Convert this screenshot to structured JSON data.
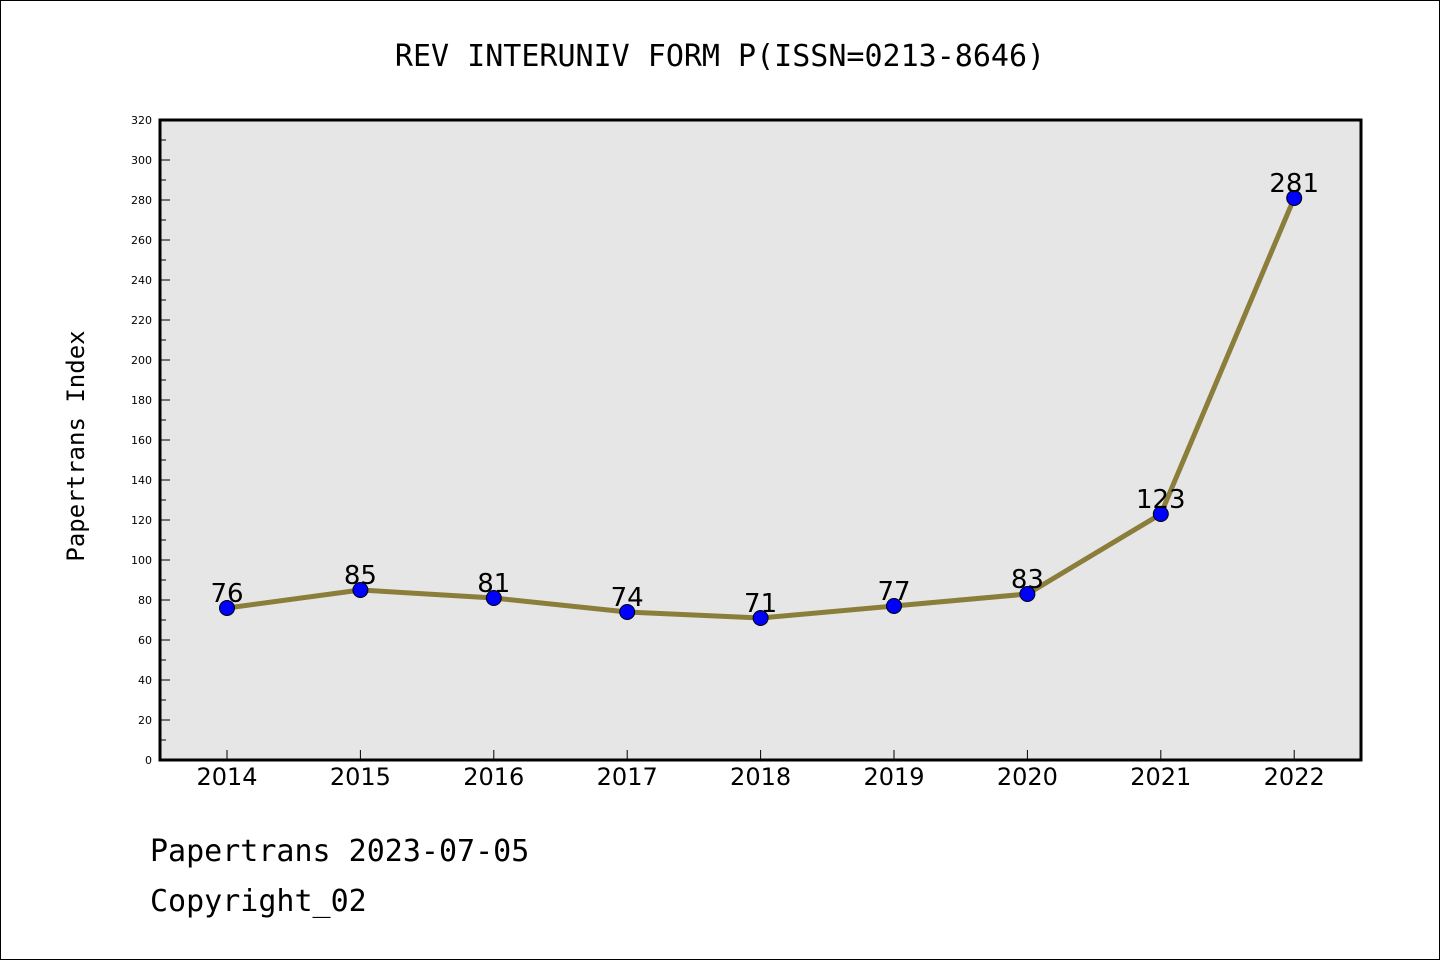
{
  "chart_data": {
    "type": "line",
    "title": "REV INTERUNIV FORM P(ISSN=0213-8646)",
    "xlabel": "",
    "ylabel": "Papertrans Index",
    "categories": [
      "2014",
      "2015",
      "2016",
      "2017",
      "2018",
      "2019",
      "2020",
      "2021",
      "2022"
    ],
    "series": [
      {
        "values": [
          76,
          85,
          81,
          74,
          71,
          77,
          83,
          123,
          281
        ]
      }
    ],
    "ylim": [
      0,
      320
    ],
    "yticks": [
      0,
      20,
      40,
      60,
      80,
      100,
      120,
      140,
      160,
      180,
      200,
      220,
      240,
      260,
      280,
      300,
      320
    ],
    "grid": false,
    "data_labels": true,
    "colors": {
      "line": "#8b7d3a",
      "marker": "#0000ff",
      "plot_background": "#e6e6e6"
    }
  },
  "footer": {
    "source": "Papertrans 2023-07-05",
    "copyright": "Copyright_02"
  }
}
